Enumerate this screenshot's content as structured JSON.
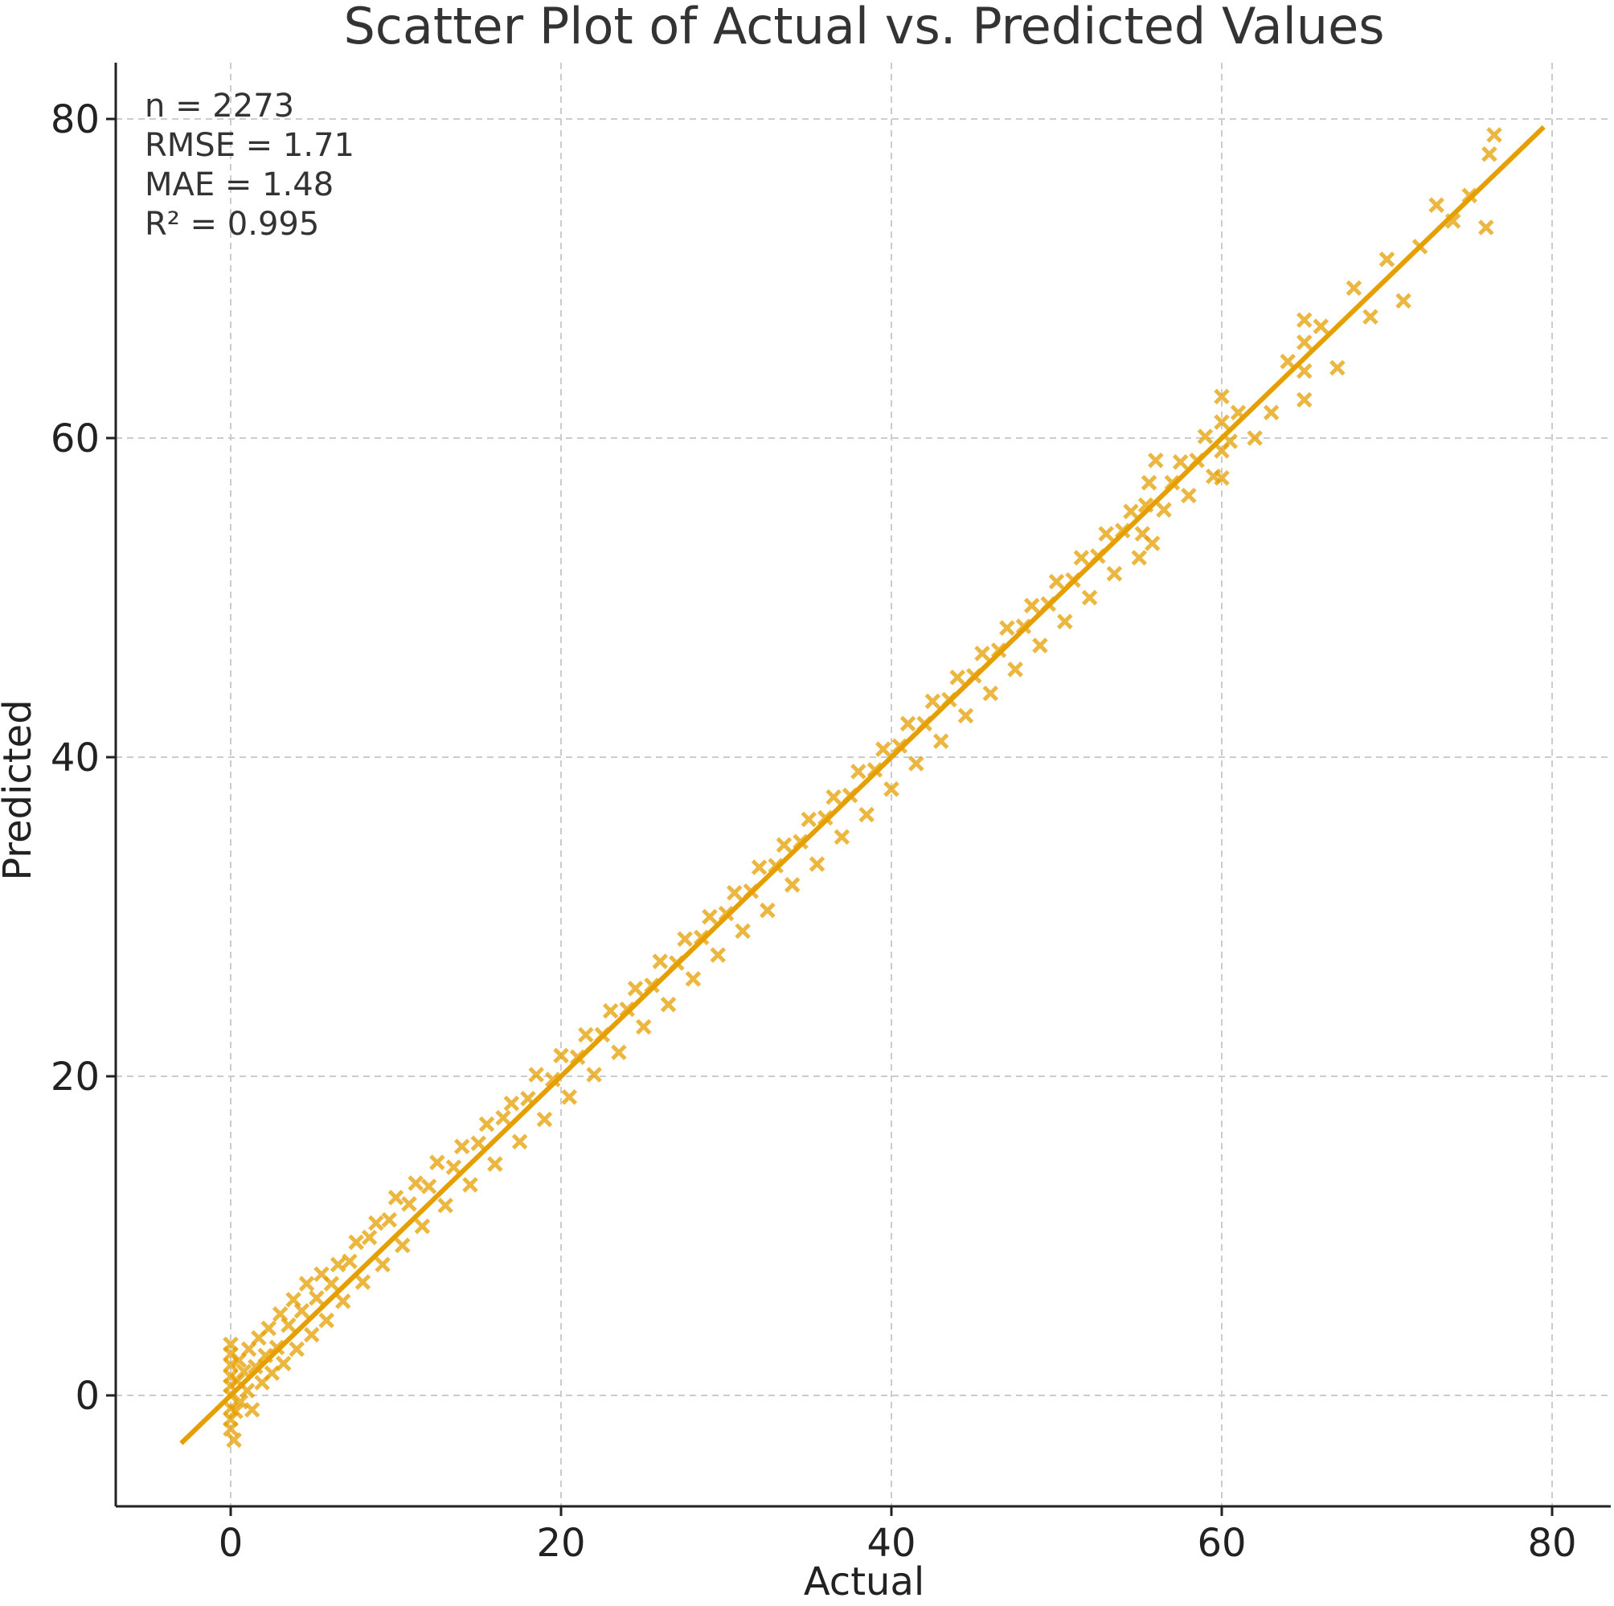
{
  "chart_data": {
    "type": "scatter",
    "title": "Scatter Plot of Actual vs. Predicted Values",
    "xlabel": "Actual",
    "ylabel": "Predicted",
    "xlim": [
      -7,
      83
    ],
    "ylim": [
      -7,
      84
    ],
    "xticks": [
      0,
      20,
      40,
      60,
      80
    ],
    "yticks": [
      0,
      20,
      40,
      60,
      80
    ],
    "xtick_labels": [
      "0",
      "20",
      "40",
      "60",
      "80"
    ],
    "ytick_labels": [
      "0",
      "20",
      "40",
      "60",
      "80"
    ],
    "grid": true,
    "marker": "x",
    "color": "#E69F00",
    "stats": [
      "n = 2273",
      "RMSE = 1.71",
      "MAE = 1.48",
      "R² = 0.995"
    ],
    "fit_line": {
      "x": [
        -3,
        79.5
      ],
      "y": [
        -3,
        79.5
      ]
    },
    "points": [
      [
        0,
        -2.1
      ],
      [
        0,
        -1.5
      ],
      [
        0,
        -0.8
      ],
      [
        0,
        0.0
      ],
      [
        0,
        0.6
      ],
      [
        0,
        1.2
      ],
      [
        0,
        1.9
      ],
      [
        0,
        2.6
      ],
      [
        0,
        3.2
      ],
      [
        0.2,
        -2.8
      ],
      [
        0.3,
        -1.0
      ],
      [
        0.4,
        0.9
      ],
      [
        0.5,
        2.2
      ],
      [
        0.6,
        -0.4
      ],
      [
        0.8,
        1.5
      ],
      [
        1.0,
        0.3
      ],
      [
        1.1,
        2.9
      ],
      [
        1.3,
        -0.9
      ],
      [
        1.5,
        1.8
      ],
      [
        1.7,
        3.6
      ],
      [
        1.9,
        0.8
      ],
      [
        2.1,
        2.5
      ],
      [
        2.3,
        4.2
      ],
      [
        2.5,
        1.4
      ],
      [
        2.8,
        3.0
      ],
      [
        3.0,
        5.1
      ],
      [
        3.2,
        2.0
      ],
      [
        3.5,
        4.4
      ],
      [
        3.8,
        6.0
      ],
      [
        4.0,
        2.9
      ],
      [
        4.3,
        5.3
      ],
      [
        4.6,
        7.0
      ],
      [
        4.9,
        3.8
      ],
      [
        5.2,
        6.1
      ],
      [
        5.5,
        7.6
      ],
      [
        5.8,
        4.7
      ],
      [
        6.1,
        7.0
      ],
      [
        6.5,
        8.2
      ],
      [
        6.8,
        5.9
      ],
      [
        7.2,
        8.4
      ],
      [
        7.6,
        9.6
      ],
      [
        8.0,
        7.1
      ],
      [
        8.4,
        9.9
      ],
      [
        8.8,
        10.8
      ],
      [
        9.2,
        8.2
      ],
      [
        9.6,
        11.0
      ],
      [
        10.0,
        12.4
      ],
      [
        10.4,
        9.4
      ],
      [
        10.8,
        12.0
      ],
      [
        11.2,
        13.3
      ],
      [
        11.6,
        10.6
      ],
      [
        12.0,
        13.1
      ],
      [
        12.5,
        14.6
      ],
      [
        13.0,
        11.9
      ],
      [
        13.5,
        14.3
      ],
      [
        14.0,
        15.6
      ],
      [
        14.5,
        13.2
      ],
      [
        15.0,
        15.8
      ],
      [
        15.5,
        17.0
      ],
      [
        16.0,
        14.5
      ],
      [
        16.5,
        17.4
      ],
      [
        17.0,
        18.3
      ],
      [
        17.5,
        15.9
      ],
      [
        18.0,
        18.6
      ],
      [
        18.5,
        20.1
      ],
      [
        19.0,
        17.3
      ],
      [
        19.5,
        19.8
      ],
      [
        20.0,
        21.3
      ],
      [
        20.5,
        18.7
      ],
      [
        21.0,
        21.2
      ],
      [
        21.5,
        22.6
      ],
      [
        22.0,
        20.1
      ],
      [
        22.5,
        22.6
      ],
      [
        23.0,
        24.1
      ],
      [
        23.5,
        21.5
      ],
      [
        24.0,
        24.2
      ],
      [
        24.5,
        25.5
      ],
      [
        25.0,
        23.1
      ],
      [
        25.5,
        25.7
      ],
      [
        26.0,
        27.2
      ],
      [
        26.5,
        24.5
      ],
      [
        27.0,
        27.1
      ],
      [
        27.5,
        28.6
      ],
      [
        28.0,
        26.1
      ],
      [
        28.5,
        28.7
      ],
      [
        29.0,
        30.0
      ],
      [
        29.5,
        27.6
      ],
      [
        30.0,
        30.2
      ],
      [
        30.5,
        31.5
      ],
      [
        31.0,
        29.1
      ],
      [
        31.5,
        31.6
      ],
      [
        32.0,
        33.1
      ],
      [
        32.5,
        30.4
      ],
      [
        33.0,
        33.2
      ],
      [
        33.5,
        34.5
      ],
      [
        34.0,
        32.0
      ],
      [
        34.5,
        34.7
      ],
      [
        35.0,
        36.1
      ],
      [
        35.5,
        33.3
      ],
      [
        36.0,
        36.2
      ],
      [
        36.5,
        37.5
      ],
      [
        37.0,
        35.0
      ],
      [
        37.5,
        37.6
      ],
      [
        38.0,
        39.1
      ],
      [
        38.5,
        36.4
      ],
      [
        39.0,
        39.2
      ],
      [
        39.5,
        40.5
      ],
      [
        40.0,
        38.0
      ],
      [
        40.5,
        40.7
      ],
      [
        41.0,
        42.1
      ],
      [
        41.5,
        39.6
      ],
      [
        42.0,
        42.1
      ],
      [
        42.5,
        43.5
      ],
      [
        43.0,
        41.0
      ],
      [
        43.5,
        43.6
      ],
      [
        44.0,
        45.0
      ],
      [
        44.5,
        42.6
      ],
      [
        45.0,
        45.1
      ],
      [
        45.5,
        46.5
      ],
      [
        46.0,
        44.0
      ],
      [
        46.5,
        46.7
      ],
      [
        47.0,
        48.1
      ],
      [
        47.5,
        45.5
      ],
      [
        48.0,
        48.2
      ],
      [
        48.5,
        49.5
      ],
      [
        49.0,
        47.0
      ],
      [
        49.5,
        49.6
      ],
      [
        50.0,
        51.0
      ],
      [
        50.5,
        48.5
      ],
      [
        51.0,
        51.1
      ],
      [
        51.5,
        52.5
      ],
      [
        52.0,
        50.0
      ],
      [
        52.5,
        52.6
      ],
      [
        53.0,
        54.0
      ],
      [
        53.5,
        51.5
      ],
      [
        54.0,
        54.2
      ],
      [
        54.5,
        55.4
      ],
      [
        55.0,
        52.5
      ],
      [
        55.2,
        54.0
      ],
      [
        55.4,
        55.8
      ],
      [
        55.6,
        57.2
      ],
      [
        55.8,
        53.4
      ],
      [
        56.0,
        58.6
      ],
      [
        56.5,
        55.5
      ],
      [
        57.0,
        57.2
      ],
      [
        57.5,
        58.5
      ],
      [
        58.0,
        56.4
      ],
      [
        58.5,
        58.6
      ],
      [
        59.0,
        60.1
      ],
      [
        59.5,
        57.6
      ],
      [
        60.0,
        57.5
      ],
      [
        60.0,
        59.2
      ],
      [
        60.0,
        61.0
      ],
      [
        60.0,
        62.6
      ],
      [
        60.5,
        59.8
      ],
      [
        61.0,
        61.6
      ],
      [
        62.0,
        60.0
      ],
      [
        63.0,
        61.6
      ],
      [
        64.0,
        64.8
      ],
      [
        65.0,
        62.4
      ],
      [
        65.0,
        64.2
      ],
      [
        65.0,
        66.0
      ],
      [
        65.0,
        67.4
      ],
      [
        66.0,
        67.0
      ],
      [
        67.0,
        64.4
      ],
      [
        68.0,
        69.4
      ],
      [
        69.0,
        67.6
      ],
      [
        70.0,
        71.2
      ],
      [
        71.0,
        68.6
      ],
      [
        72.0,
        72.0
      ],
      [
        73.0,
        74.6
      ],
      [
        74.0,
        73.6
      ],
      [
        75.0,
        75.2
      ],
      [
        76.0,
        73.2
      ],
      [
        76.2,
        77.8
      ],
      [
        76.5,
        79.0
      ]
    ]
  }
}
